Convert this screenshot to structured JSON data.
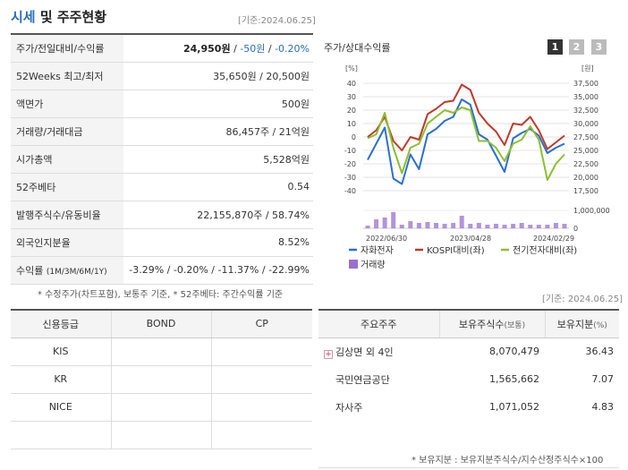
{
  "header": {
    "title_accent": "시세",
    "title_rest": " 및 주주현황",
    "date": "[기준:2024.06.25]"
  },
  "info_rows": [
    {
      "label": "주가/전일대비/수익률",
      "price": "24,950원",
      "sep1": " / ",
      "change": "-50원",
      "sep2": " / ",
      "rate": "-0.20%"
    },
    {
      "label": "52Weeks 최고/최저",
      "value": "35,650원 / 20,500원"
    },
    {
      "label": "액면가",
      "value": "500원"
    },
    {
      "label": "거래량/거래대금",
      "value": "86,457주 / 21억원"
    },
    {
      "label": "시가총액",
      "value": "5,528억원"
    },
    {
      "label": "52주베타",
      "value": "0.54"
    },
    {
      "label": "발행주식수/유동비율",
      "value": "22,155,870주 / 58.74%"
    },
    {
      "label": "외국인지분율",
      "value": "8.52%"
    },
    {
      "label": "수익률",
      "label_sub": "(1M/3M/6M/1Y)",
      "value": "-3.29% / -0.20% / -11.37% / -22.99%"
    }
  ],
  "note_left": "* 수정주가(차트포함), 보통주 기준, * 52주베타: 주간수익률 기준",
  "chart": {
    "title": "주가/상대수익률",
    "pages": [
      "1",
      "2",
      "3"
    ]
  },
  "chart_data": {
    "type": "line",
    "left_axis_unit": "[%]",
    "right_axis_unit": "[원]",
    "left_ticks": [
      "40",
      "30",
      "20",
      "10",
      "0",
      "-10",
      "-20",
      "-30",
      "-40"
    ],
    "right_ticks": [
      "37,500",
      "35,000",
      "32,500",
      "30,000",
      "27,500",
      "25,000",
      "22,500",
      "20,000",
      "17,500"
    ],
    "volume_ticks": [
      "1,000,000",
      "0"
    ],
    "x_labels": [
      "2022/06/30",
      "2023/04/28",
      "2024/02/29"
    ],
    "ylim": [
      -40,
      40
    ],
    "series": [
      {
        "name": "자화전자",
        "color": "#2a6fcf",
        "values": [
          -17,
          -5,
          7,
          -31,
          -35,
          -13,
          -24,
          2,
          6,
          12,
          15,
          28,
          24,
          2,
          -2,
          -14,
          -26,
          -1,
          3,
          6,
          1,
          -12,
          -8,
          -5
        ]
      },
      {
        "name": "KOSPI대비(좌)",
        "color": "#c0392b",
        "values": [
          0,
          5,
          15,
          -3,
          -10,
          0,
          -2,
          17,
          21,
          26,
          27,
          39,
          35,
          18,
          10,
          4,
          -6,
          10,
          9,
          15,
          5,
          -9,
          -4,
          1
        ]
      },
      {
        "name": "전기전자대비(좌)",
        "color": "#8dbf2e",
        "values": [
          -1,
          2,
          18,
          -8,
          -27,
          -8,
          -5,
          10,
          15,
          20,
          18,
          22,
          20,
          -3,
          -3,
          -8,
          -18,
          -5,
          -2,
          8,
          -2,
          -32,
          -20,
          -13
        ]
      }
    ],
    "volume_label": "거래량",
    "volume_color": "#9b6fcf",
    "volume": [
      0.15,
      0.5,
      0.6,
      0.9,
      0.2,
      0.4,
      0.3,
      0.35,
      0.3,
      0.25,
      0.3,
      0.7,
      0.25,
      0.3,
      0.2,
      0.25,
      0.2,
      0.25,
      0.3,
      0.2,
      0.2,
      0.2,
      0.3,
      0.25
    ]
  },
  "date_right": "[기준: 2024.06.25]",
  "credit": {
    "headers": [
      "신용등급",
      "BOND",
      "CP"
    ],
    "rows": [
      {
        "agency": "KIS",
        "bond": "",
        "cp": ""
      },
      {
        "agency": "KR",
        "bond": "",
        "cp": ""
      },
      {
        "agency": "NICE",
        "bond": "",
        "cp": ""
      },
      {
        "agency": "",
        "bond": "",
        "cp": ""
      }
    ]
  },
  "holders": {
    "h_name": "주요주주",
    "h_shares": "보유주식수",
    "h_shares_sub": "(보통)",
    "h_ratio": "보유지분",
    "h_ratio_sub": "(%)",
    "rows": [
      {
        "name": "김상면 외 4인",
        "shares": "8,070,479",
        "ratio": "36.43",
        "expand": "+"
      },
      {
        "name": "국민연금공단",
        "shares": "1,565,662",
        "ratio": "7.07"
      },
      {
        "name": "자사주",
        "shares": "1,071,052",
        "ratio": "4.83"
      }
    ]
  },
  "note_right": "* 보유지분 : 보유지분주식수/지수산정주식수×100"
}
